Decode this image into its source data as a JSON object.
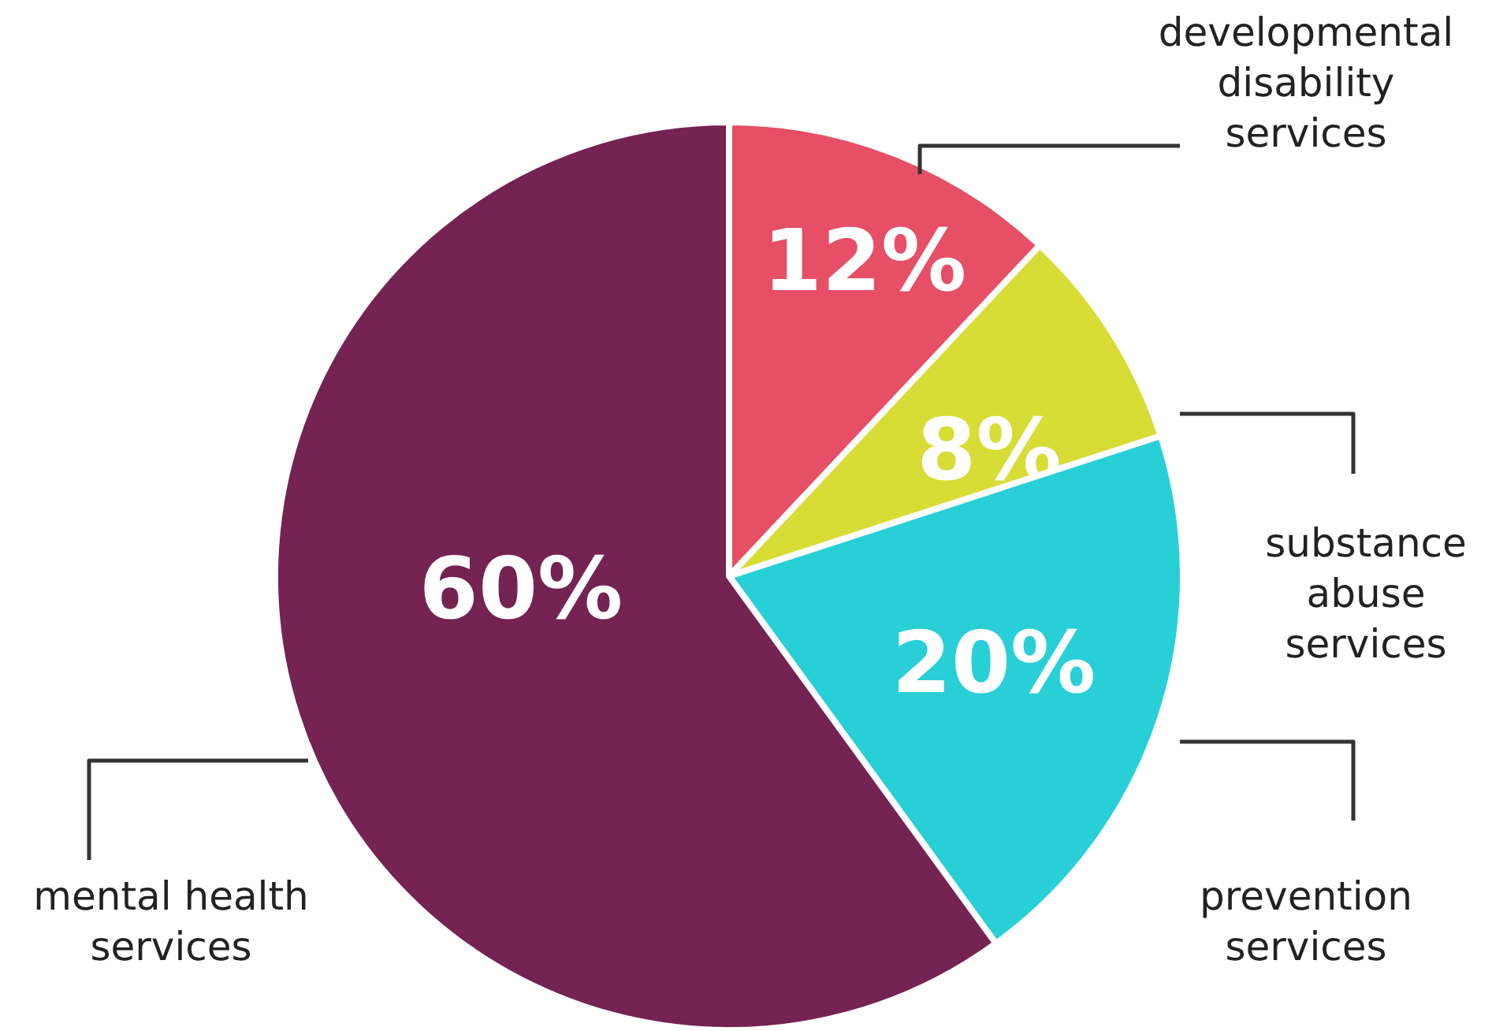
{
  "chart_data": {
    "type": "pie",
    "categories": [
      "developmental disability services",
      "substance abuse services",
      "prevention services",
      "mental health services"
    ],
    "values": [
      12,
      8,
      20,
      60
    ],
    "colors": [
      "#e64f66",
      "#d8dd36",
      "#29cfd6",
      "#742352"
    ],
    "value_labels": [
      "12%",
      "8%",
      "20%",
      "60%"
    ]
  }
}
